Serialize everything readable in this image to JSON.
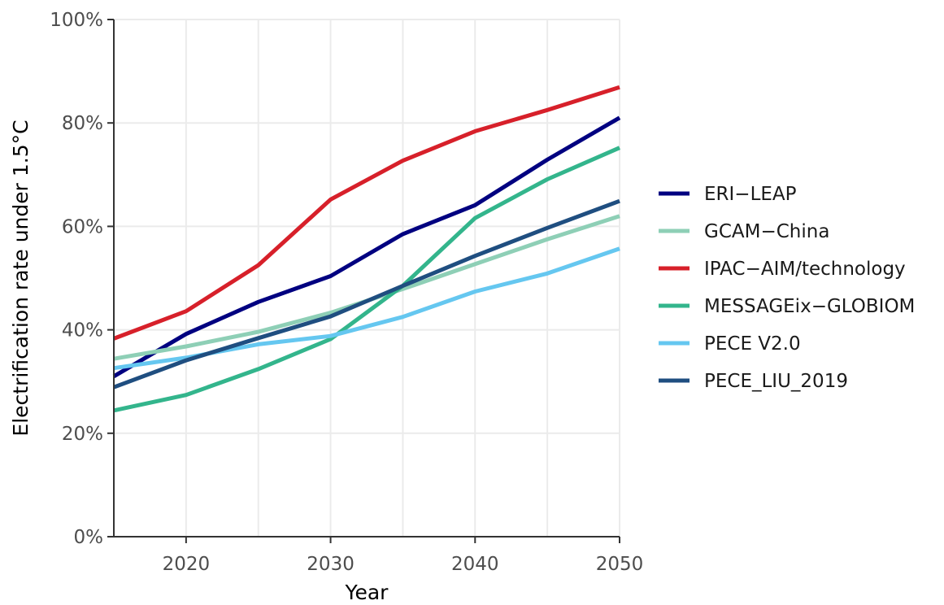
{
  "chart_data": {
    "type": "line",
    "xlabel": "Year",
    "ylabel": "Electrification rate under 1.5°C",
    "xlim": [
      2015,
      2050
    ],
    "ylim": [
      0,
      100
    ],
    "x_ticks": [
      2020,
      2030,
      2040,
      2050
    ],
    "y_ticks": [
      0,
      20,
      40,
      60,
      80,
      100
    ],
    "y_tick_labels": [
      "0%",
      "20%",
      "40%",
      "60%",
      "80%",
      "100%"
    ],
    "grid": true,
    "legend_position": "right",
    "x": [
      2015,
      2020,
      2025,
      2030,
      2035,
      2040,
      2045,
      2050
    ],
    "series": [
      {
        "name": "ERI−LEAP",
        "color": "#000080",
        "values": [
          31.0,
          39.2,
          45.4,
          50.4,
          58.5,
          64.1,
          72.9,
          81.0
        ]
      },
      {
        "name": "GCAM−China",
        "color": "#8ecfb6",
        "values": [
          34.4,
          36.8,
          39.6,
          43.3,
          47.9,
          52.7,
          57.5,
          62.0
        ]
      },
      {
        "name": "IPAC−AIM/technology",
        "color": "#d7202a",
        "values": [
          38.3,
          43.6,
          52.5,
          65.2,
          72.7,
          78.4,
          82.5,
          86.9
        ]
      },
      {
        "name": "MESSAGEix−GLOBIOM",
        "color": "#33b58c",
        "values": [
          24.4,
          27.4,
          32.4,
          38.2,
          48.5,
          61.6,
          69.1,
          75.2
        ]
      },
      {
        "name": "PECE V2.0",
        "color": "#65c7f0",
        "values": [
          32.6,
          34.6,
          37.2,
          38.8,
          42.5,
          47.4,
          50.9,
          55.7
        ]
      },
      {
        "name": "PECE_LIU_2019",
        "color": "#1f4e80",
        "values": [
          28.9,
          34.1,
          38.4,
          42.6,
          48.5,
          54.3,
          59.7,
          64.9
        ]
      }
    ]
  }
}
